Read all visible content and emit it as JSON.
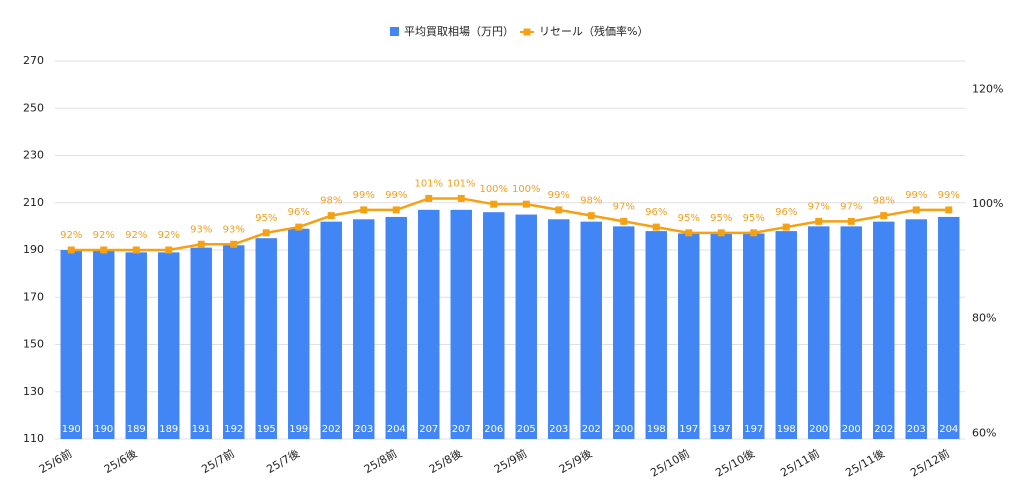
{
  "chart_data": {
    "type": "bar-line",
    "categories": [
      "25/6前",
      null,
      "25/6後",
      null,
      null,
      "25/7前",
      null,
      "25/7後",
      null,
      null,
      "25/8前",
      null,
      "25/8後",
      null,
      "25/9前",
      null,
      "25/9後",
      null,
      null,
      "25/10前",
      null,
      "25/10後",
      null,
      "25/11前",
      null,
      "25/11後",
      null,
      "25/12前"
    ],
    "series": [
      {
        "name": "平均買取相場（万円）",
        "color": "#4285f4",
        "type": "bar",
        "values": [
          190,
          190,
          189,
          189,
          191,
          192,
          195,
          199,
          202,
          203,
          204,
          207,
          207,
          206,
          205,
          203,
          202,
          200,
          198,
          197,
          197,
          197,
          198,
          200,
          200,
          202,
          203,
          204
        ]
      },
      {
        "name": "リセール（残価率%）",
        "color": "#f4a214",
        "type": "line",
        "axis": "y2",
        "values": [
          92,
          92,
          92,
          92,
          93,
          93,
          95,
          96,
          98,
          99,
          99,
          101,
          101,
          100,
          100,
          99,
          98,
          97,
          96,
          95,
          95,
          95,
          96,
          97,
          97,
          98,
          99,
          99
        ],
        "value_labels": [
          "92%",
          "92%",
          "92%",
          "92%",
          "93%",
          "93%",
          "95%",
          "96%",
          "98%",
          "99%",
          "99%",
          "101%",
          "101%",
          "100%",
          "100%",
          "99%",
          "98%",
          "97%",
          "96%",
          "95%",
          "95%",
          "95%",
          "96%",
          "97%",
          "97%",
          "98%",
          "99%",
          "99%"
        ]
      }
    ],
    "ylim": [
      110,
      270
    ],
    "yticks": [
      110,
      130,
      150,
      170,
      190,
      210,
      230,
      250,
      270
    ],
    "y2lim": [
      59,
      125
    ],
    "y2ticks": [
      {
        "value": 60,
        "label": "60%"
      },
      {
        "value": 80,
        "label": "80%"
      },
      {
        "value": 100,
        "label": "100%"
      },
      {
        "value": 120,
        "label": "120%"
      }
    ],
    "grid": true,
    "legend": "top"
  }
}
